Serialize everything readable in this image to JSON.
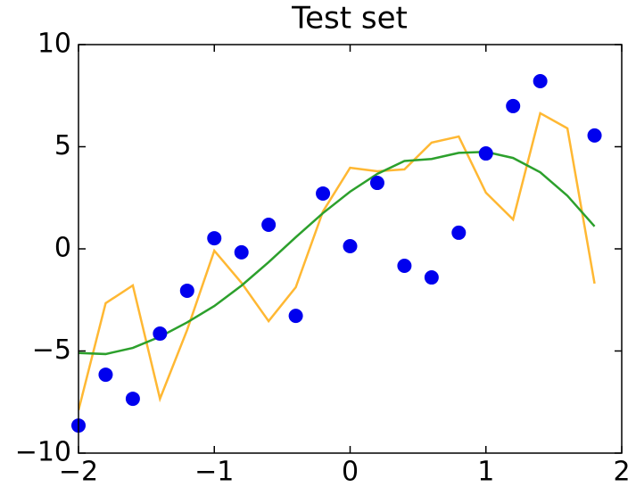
{
  "chart_data": {
    "type": "scatter",
    "title": "Test set",
    "xlim": [
      -2,
      2
    ],
    "xticks": [
      {
        "value": -2,
        "label": "−2"
      },
      {
        "value": -1,
        "label": "−1"
      },
      0,
      1,
      2
    ],
    "ylim": [
      -10,
      10
    ],
    "yticks": [
      10,
      5,
      0,
      {
        "value": -5,
        "label": "−5"
      },
      {
        "value": -10,
        "label": "−10"
      }
    ],
    "grid": false,
    "series": [
      {
        "mode": "line",
        "color": "#ffb833",
        "x": [
          -2,
          -1.8,
          -1.6,
          -1.4,
          -1.2,
          -1.0,
          -0.8,
          -0.6,
          -0.4,
          -0.2,
          0,
          0.2,
          0.4,
          0.6,
          0.8,
          1.0,
          1.2,
          1.4,
          1.6,
          1.8
        ],
        "values": [
          -7.9,
          -2.66,
          -1.79,
          -7.34,
          -3.97,
          -0.09,
          -1.66,
          -3.54,
          -1.88,
          1.83,
          3.97,
          3.8,
          3.89,
          5.2,
          5.5,
          2.75,
          1.44,
          6.64,
          5.9,
          -1.7
        ]
      },
      {
        "mode": "line",
        "color": "#2ca02c",
        "x": [
          -2,
          -1.8,
          -1.6,
          -1.4,
          -1.2,
          -1.0,
          -0.8,
          -0.6,
          -0.4,
          -0.2,
          0,
          0.2,
          0.4,
          0.6,
          0.8,
          1.0,
          1.2,
          1.4,
          1.6,
          1.8
        ],
        "values": [
          -5.1,
          -5.15,
          -4.85,
          -4.3,
          -3.6,
          -2.8,
          -1.8,
          -0.65,
          0.57,
          1.75,
          2.8,
          3.67,
          4.3,
          4.4,
          4.7,
          4.75,
          4.45,
          3.75,
          2.6,
          1.1
        ]
      },
      {
        "mode": "markers",
        "color": "#0000ee",
        "x": [
          -2,
          -1.8,
          -1.6,
          -1.4,
          -1.2,
          -1.0,
          -0.8,
          -0.6,
          -0.4,
          -0.2,
          0,
          0.2,
          0.4,
          0.6,
          0.8,
          1.0,
          1.2,
          1.4,
          1.8
        ],
        "values": [
          -8.65,
          -6.16,
          -7.34,
          -4.15,
          -2.05,
          0.52,
          -0.17,
          1.18,
          -3.28,
          2.71,
          0.13,
          3.23,
          -0.83,
          -1.4,
          0.79,
          4.67,
          6.99,
          8.21,
          5.55
        ]
      }
    ]
  }
}
